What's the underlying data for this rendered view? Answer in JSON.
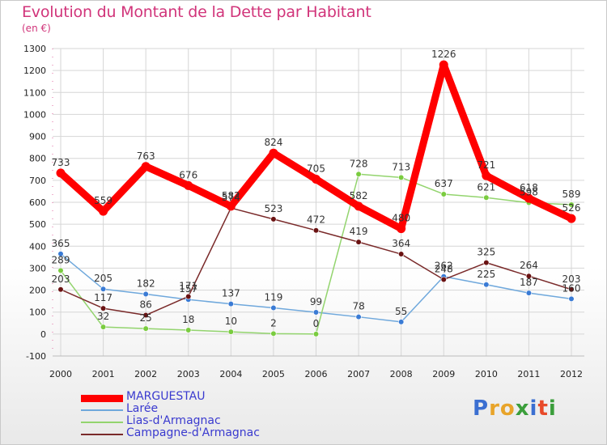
{
  "title": "Evolution du Montant de la Dette par Habitant",
  "subtitle": "(en €)",
  "logo": {
    "text": "Proxiti",
    "letter_colors": [
      "#3b6fd1",
      "#e8a42a",
      "#e8a42a",
      "#3b9e3b",
      "#3b6fd1",
      "#e84a2a",
      "#3b9e3b"
    ]
  },
  "chart_data": {
    "type": "line",
    "x": [
      "2000",
      "2001",
      "2002",
      "2003",
      "2004",
      "2005",
      "2006",
      "2007",
      "2008",
      "2009",
      "2010",
      "2011",
      "2012"
    ],
    "ylim": [
      -100,
      1300
    ],
    "yticks": [
      -100,
      0,
      100,
      200,
      300,
      400,
      500,
      600,
      700,
      800,
      900,
      1000,
      1100,
      1200,
      1300
    ],
    "grid": true,
    "legend_position": "bottom-left",
    "series": [
      {
        "name": "MARGUESTAU",
        "color": "#ff0000",
        "width": 9,
        "values": [
          733,
          559,
          763,
          676,
          582,
          824,
          705,
          582,
          480,
          1226,
          721,
          618,
          526
        ]
      },
      {
        "name": "Larée",
        "color": "#6fa8dc",
        "width": 1.5,
        "values": [
          365,
          205,
          182,
          157,
          137,
          119,
          99,
          78,
          55,
          262,
          225,
          187,
          160
        ]
      },
      {
        "name": "Lias-d'Armagnac",
        "color": "#93d46e",
        "width": 1.5,
        "values": [
          289,
          32,
          25,
          18,
          10,
          2,
          0,
          728,
          713,
          637,
          621,
          598,
          589
        ]
      },
      {
        "name": "Campagne-d'Armagnac",
        "color": "#7a2a2a",
        "width": 1.5,
        "values": [
          203,
          117,
          86,
          171,
          574,
          523,
          472,
          419,
          364,
          248,
          325,
          264,
          203
        ]
      }
    ]
  }
}
